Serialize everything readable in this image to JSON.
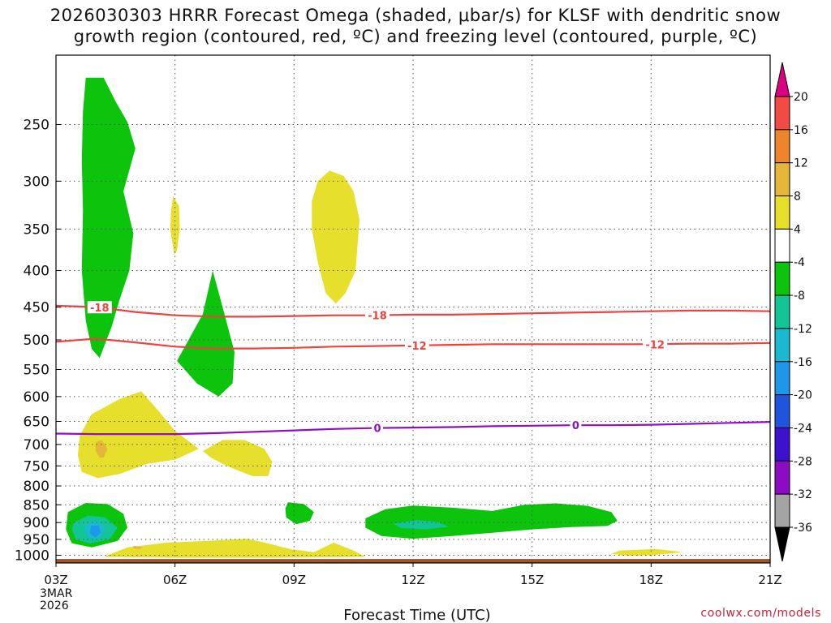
{
  "chart_data": {
    "type": "heatmap",
    "title_line1": "2026030303 HRRR Forecast Omega (shaded, μbar/s) for KLSF with dendritic snow",
    "title_line2": "growth region (contoured, red, ºC) and freezing level (contoured, purple, ºC)",
    "xlabel": "Forecast Time (UTC)",
    "x_date_lines": [
      "3MAR",
      "2026"
    ],
    "x_ticks": [
      {
        "label": "03Z",
        "hour": 0
      },
      {
        "label": "06Z",
        "hour": 3
      },
      {
        "label": "09Z",
        "hour": 6
      },
      {
        "label": "12Z",
        "hour": 9
      },
      {
        "label": "15Z",
        "hour": 12
      },
      {
        "label": "18Z",
        "hour": 15
      },
      {
        "label": "21Z",
        "hour": 18
      }
    ],
    "xlim": [
      0,
      18
    ],
    "y_ticks": [
      250,
      300,
      350,
      400,
      450,
      500,
      550,
      600,
      650,
      700,
      750,
      800,
      850,
      900,
      950,
      1000
    ],
    "ylim_hpa": [
      1025,
      200
    ],
    "y_log": true,
    "ground_level_hpa": 1012,
    "colorbar": {
      "labels": [
        "20",
        "16",
        "12",
        "8",
        "4",
        "-4",
        "-8",
        "-12",
        "-16",
        "-20",
        "-24",
        "-28",
        "-32",
        "-36"
      ],
      "colors": [
        "#dd0080",
        "#f44a46",
        "#ee852b",
        "#e6b63b",
        "#e6e02c",
        "#ffffff",
        "#0cc40c",
        "#13c496",
        "#1ab9cf",
        "#1e97ea",
        "#2054dc",
        "#3c10cc",
        "#8c0cc4",
        "#a4a4a4",
        "#000000"
      ]
    },
    "contours": [
      {
        "name": "dgz-minus18",
        "label": "-18",
        "color": "#f04040",
        "hours": [
          0,
          1,
          2,
          3,
          4,
          5,
          6,
          7,
          8,
          9,
          10,
          11,
          12,
          13,
          14,
          15,
          16,
          17,
          18
        ],
        "pressure_hpa": [
          448,
          450,
          457,
          462,
          464,
          464,
          463,
          462,
          462,
          461,
          461,
          460,
          459,
          458,
          457,
          456,
          455,
          455,
          456
        ],
        "label_hours": [
          1.1,
          8.1
        ]
      },
      {
        "name": "dgz-minus12",
        "label": "-12",
        "color": "#f04040",
        "hours": [
          0,
          1,
          2,
          3,
          4,
          5,
          6,
          7,
          8,
          9,
          10,
          11,
          12,
          13,
          14,
          15,
          16,
          17,
          18
        ],
        "pressure_hpa": [
          503,
          498,
          504,
          511,
          514,
          514,
          513,
          511,
          510,
          509,
          508,
          507,
          507,
          507,
          507,
          507,
          506,
          506,
          505
        ],
        "label_hours": [
          9.1,
          15.1
        ]
      },
      {
        "name": "freezing-level-0",
        "label": "0",
        "color": "#9010c0",
        "hours": [
          0,
          1,
          2,
          3,
          4,
          5,
          6,
          7,
          8,
          9,
          10,
          11,
          12,
          13,
          14,
          15,
          16,
          17,
          18
        ],
        "pressure_hpa": [
          676,
          677,
          677,
          677,
          675,
          672,
          669,
          666,
          664,
          663,
          662,
          660,
          659,
          658,
          658,
          657,
          655,
          653,
          651
        ],
        "label_hours": [
          8.1,
          13.1
        ]
      }
    ],
    "shaded_regions": [
      {
        "name": "upward-omega-upper-column",
        "value": "-4 to -8",
        "color": "#0cc40c",
        "points": [
          [
            0.75,
            215
          ],
          [
            1.2,
            215
          ],
          [
            1.5,
            232
          ],
          [
            1.8,
            248
          ],
          [
            2.0,
            270
          ],
          [
            1.7,
            310
          ],
          [
            1.95,
            355
          ],
          [
            1.85,
            400
          ],
          [
            1.6,
            440
          ],
          [
            1.4,
            480
          ],
          [
            1.1,
            530
          ],
          [
            0.9,
            515
          ],
          [
            0.75,
            470
          ],
          [
            0.65,
            400
          ],
          [
            0.68,
            330
          ],
          [
            0.65,
            280
          ],
          [
            0.68,
            240
          ]
        ]
      },
      {
        "name": "upward-omega-midlevel",
        "value": "-4 to -8",
        "color": "#0cc40c",
        "points": [
          [
            3.95,
            400
          ],
          [
            4.2,
            450
          ],
          [
            4.5,
            520
          ],
          [
            4.45,
            575
          ],
          [
            4.1,
            600
          ],
          [
            3.55,
            575
          ],
          [
            3.05,
            535
          ],
          [
            3.3,
            505
          ],
          [
            3.7,
            460
          ]
        ]
      },
      {
        "name": "downward-omega-thin-streak",
        "value": "4 to 8",
        "color": "#e6e02c",
        "points": [
          [
            2.95,
            315
          ],
          [
            3.1,
            325
          ],
          [
            3.12,
            350
          ],
          [
            3.05,
            375
          ],
          [
            2.98,
            380
          ],
          [
            2.88,
            350
          ],
          [
            2.9,
            330
          ]
        ]
      },
      {
        "name": "downward-omega-upper",
        "value": "4 to 8",
        "color": "#e6e02c",
        "points": [
          [
            6.9,
            290
          ],
          [
            7.25,
            295
          ],
          [
            7.5,
            310
          ],
          [
            7.65,
            340
          ],
          [
            7.55,
            400
          ],
          [
            7.3,
            430
          ],
          [
            7.05,
            445
          ],
          [
            6.8,
            430
          ],
          [
            6.6,
            390
          ],
          [
            6.45,
            350
          ],
          [
            6.45,
            320
          ],
          [
            6.6,
            300
          ]
        ]
      },
      {
        "name": "downward-omega-low-left",
        "value": "4 to 8",
        "color": "#e6e02c",
        "points": [
          [
            0.9,
            635
          ],
          [
            1.6,
            605
          ],
          [
            2.15,
            590
          ],
          [
            2.6,
            630
          ],
          [
            3.0,
            670
          ],
          [
            3.6,
            710
          ],
          [
            3.0,
            735
          ],
          [
            2.3,
            745
          ],
          [
            1.6,
            770
          ],
          [
            1.05,
            780
          ],
          [
            0.65,
            765
          ],
          [
            0.55,
            725
          ],
          [
            0.6,
            680
          ]
        ]
      },
      {
        "name": "downward-omega-low-mid",
        "value": "4 to 8",
        "color": "#e6e02c",
        "points": [
          [
            3.7,
            715
          ],
          [
            4.2,
            690
          ],
          [
            4.75,
            690
          ],
          [
            5.25,
            710
          ],
          [
            5.45,
            740
          ],
          [
            5.35,
            775
          ],
          [
            4.95,
            775
          ],
          [
            4.55,
            760
          ],
          [
            4.2,
            745
          ],
          [
            3.9,
            730
          ]
        ]
      },
      {
        "name": "downward-omega-near-surface",
        "value": "4 to 8",
        "color": "#e6e02c",
        "points": [
          [
            1.2,
            1005
          ],
          [
            1.8,
            975
          ],
          [
            2.8,
            960
          ],
          [
            3.8,
            955
          ],
          [
            4.8,
            948
          ],
          [
            5.2,
            958
          ],
          [
            5.9,
            980
          ],
          [
            6.5,
            990
          ],
          [
            7.0,
            960
          ],
          [
            7.5,
            985
          ],
          [
            7.8,
            1005
          ],
          [
            5.5,
            1008
          ],
          [
            3.0,
            1008
          ]
        ]
      },
      {
        "name": "downward-omega-surface-right",
        "value": "4 to 8",
        "color": "#e6e02c",
        "points": [
          [
            14.2,
            985
          ],
          [
            15.1,
            980
          ],
          [
            15.5,
            985
          ],
          [
            15.8,
            990
          ],
          [
            15.0,
            1000
          ],
          [
            14.4,
            1002
          ],
          [
            14.0,
            995
          ]
        ]
      },
      {
        "name": "downward-omega-core-upper",
        "value": "8 to 12",
        "color": "#e6b63b",
        "points": [
          [
            1.0,
            695
          ],
          [
            1.15,
            690
          ],
          [
            1.3,
            710
          ],
          [
            1.2,
            730
          ],
          [
            1.1,
            730
          ],
          [
            1.0,
            715
          ]
        ]
      },
      {
        "name": "downward-omega-core-surface",
        "value": "8 to 12",
        "color": "#e6b63b",
        "points": [
          [
            1.95,
            970
          ],
          [
            2.2,
            975
          ],
          [
            2.1,
            980
          ],
          [
            1.95,
            978
          ]
        ]
      },
      {
        "name": "upward-omega-low-left",
        "value": "-4 to -8",
        "color": "#0cc40c",
        "points": [
          [
            0.3,
            870
          ],
          [
            0.75,
            845
          ],
          [
            1.3,
            848
          ],
          [
            1.7,
            875
          ],
          [
            1.8,
            915
          ],
          [
            1.55,
            955
          ],
          [
            0.9,
            975
          ],
          [
            0.4,
            962
          ],
          [
            0.25,
            920
          ]
        ]
      },
      {
        "name": "upward-omega-core-1",
        "value": "-8 to -12",
        "color": "#13c496",
        "points": [
          [
            0.45,
            900
          ],
          [
            0.8,
            880
          ],
          [
            1.25,
            885
          ],
          [
            1.55,
            915
          ],
          [
            1.35,
            950
          ],
          [
            0.85,
            962
          ],
          [
            0.5,
            950
          ],
          [
            0.4,
            920
          ]
        ]
      },
      {
        "name": "upward-omega-core-2",
        "value": "-12 to -16",
        "color": "#1ab9cf",
        "points": [
          [
            0.75,
            905
          ],
          [
            1.05,
            895
          ],
          [
            1.25,
            915
          ],
          [
            1.1,
            945
          ],
          [
            0.85,
            950
          ],
          [
            0.72,
            925
          ]
        ]
      },
      {
        "name": "upward-omega-core-3",
        "value": "-16 to -20",
        "color": "#1e97ea",
        "points": [
          [
            0.88,
            910
          ],
          [
            1.08,
            908
          ],
          [
            1.12,
            930
          ],
          [
            1.0,
            945
          ],
          [
            0.86,
            932
          ]
        ]
      },
      {
        "name": "upward-omega-small-blob",
        "value": "-4 to -8",
        "color": "#0cc40c",
        "points": [
          [
            5.85,
            843
          ],
          [
            6.25,
            848
          ],
          [
            6.5,
            870
          ],
          [
            6.4,
            895
          ],
          [
            6.05,
            905
          ],
          [
            5.8,
            885
          ],
          [
            5.78,
            860
          ]
        ]
      },
      {
        "name": "upward-omega-long-band",
        "value": "-4 to -8",
        "color": "#0cc40c",
        "points": [
          [
            7.8,
            888
          ],
          [
            8.3,
            862
          ],
          [
            9.0,
            852
          ],
          [
            10.0,
            858
          ],
          [
            11.0,
            867
          ],
          [
            11.8,
            850
          ],
          [
            12.6,
            846
          ],
          [
            13.4,
            853
          ],
          [
            14.0,
            870
          ],
          [
            14.15,
            895
          ],
          [
            13.9,
            910
          ],
          [
            13.0,
            913
          ],
          [
            12.0,
            920
          ],
          [
            11.0,
            930
          ],
          [
            10.0,
            940
          ],
          [
            9.0,
            948
          ],
          [
            8.2,
            940
          ],
          [
            7.8,
            915
          ]
        ]
      },
      {
        "name": "upward-omega-band-core",
        "value": "-8 to -12",
        "color": "#13c496",
        "points": [
          [
            8.5,
            903
          ],
          [
            9.1,
            893
          ],
          [
            9.6,
            898
          ],
          [
            9.9,
            912
          ],
          [
            9.3,
            920
          ],
          [
            8.7,
            916
          ]
        ]
      }
    ]
  }
}
